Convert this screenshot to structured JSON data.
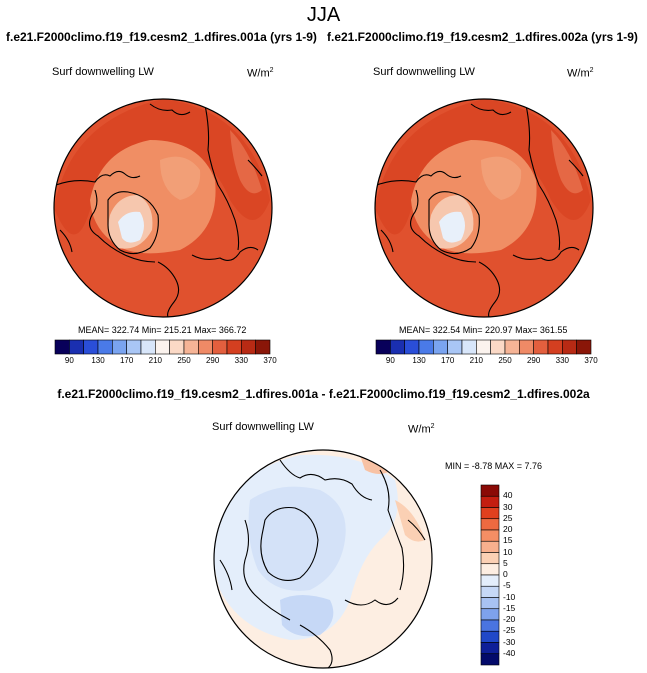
{
  "title": "JJA",
  "panels": [
    {
      "case": "f.e21.F2000climo.f19_f19.cesm2_1.dfires.001a (yrs 1-9)",
      "variable": "Surf downwelling LW",
      "units": "W/m",
      "units_exp": "2",
      "stats": "MEAN= 322.74  Min= 215.21  Max= 366.72"
    },
    {
      "case": "f.e21.F2000climo.f19_f19.cesm2_1.dfires.002a (yrs 1-9)",
      "variable": "Surf downwelling LW",
      "units": "W/m",
      "units_exp": "2",
      "stats": "MEAN= 322.54  Min= 220.97  Max= 361.55"
    }
  ],
  "colorbar": {
    "labels": [
      "90",
      "130",
      "170",
      "210",
      "250",
      "290",
      "330",
      "370"
    ],
    "colors": [
      "#08005a",
      "#1a2fb0",
      "#2a4ed8",
      "#4a7ae8",
      "#7aa4f0",
      "#a9c6f5",
      "#d8e6fa",
      "#fbf3ee",
      "#fbd9c6",
      "#f6b496",
      "#ef8a66",
      "#e35f3e",
      "#d43f20",
      "#b82a14",
      "#8a1608"
    ]
  },
  "difference": {
    "title": "f.e21.F2000climo.f19_f19.cesm2_1.dfires.001a - f.e21.F2000climo.f19_f19.cesm2_1.dfires.002a",
    "variable": "Surf downwelling LW",
    "units": "W/m",
    "units_exp": "2",
    "stats": "MIN =  -8.78 MAX =   7.76",
    "colorbar_labels": [
      "40",
      "30",
      "25",
      "20",
      "15",
      "10",
      "5",
      "0",
      "-5",
      "-10",
      "-15",
      "-20",
      "-25",
      "-30",
      "-40"
    ],
    "colorbar_colors": [
      "#8a0a06",
      "#c41e10",
      "#e0401e",
      "#ee6a40",
      "#f48e64",
      "#f8b08e",
      "#fbd0b4",
      "#fdeee2",
      "#e4eefb",
      "#c6d8f6",
      "#a8c2f2",
      "#7ea2ec",
      "#4a74e0",
      "#2048c8",
      "#0e1f98",
      "#030a6a"
    ]
  }
}
